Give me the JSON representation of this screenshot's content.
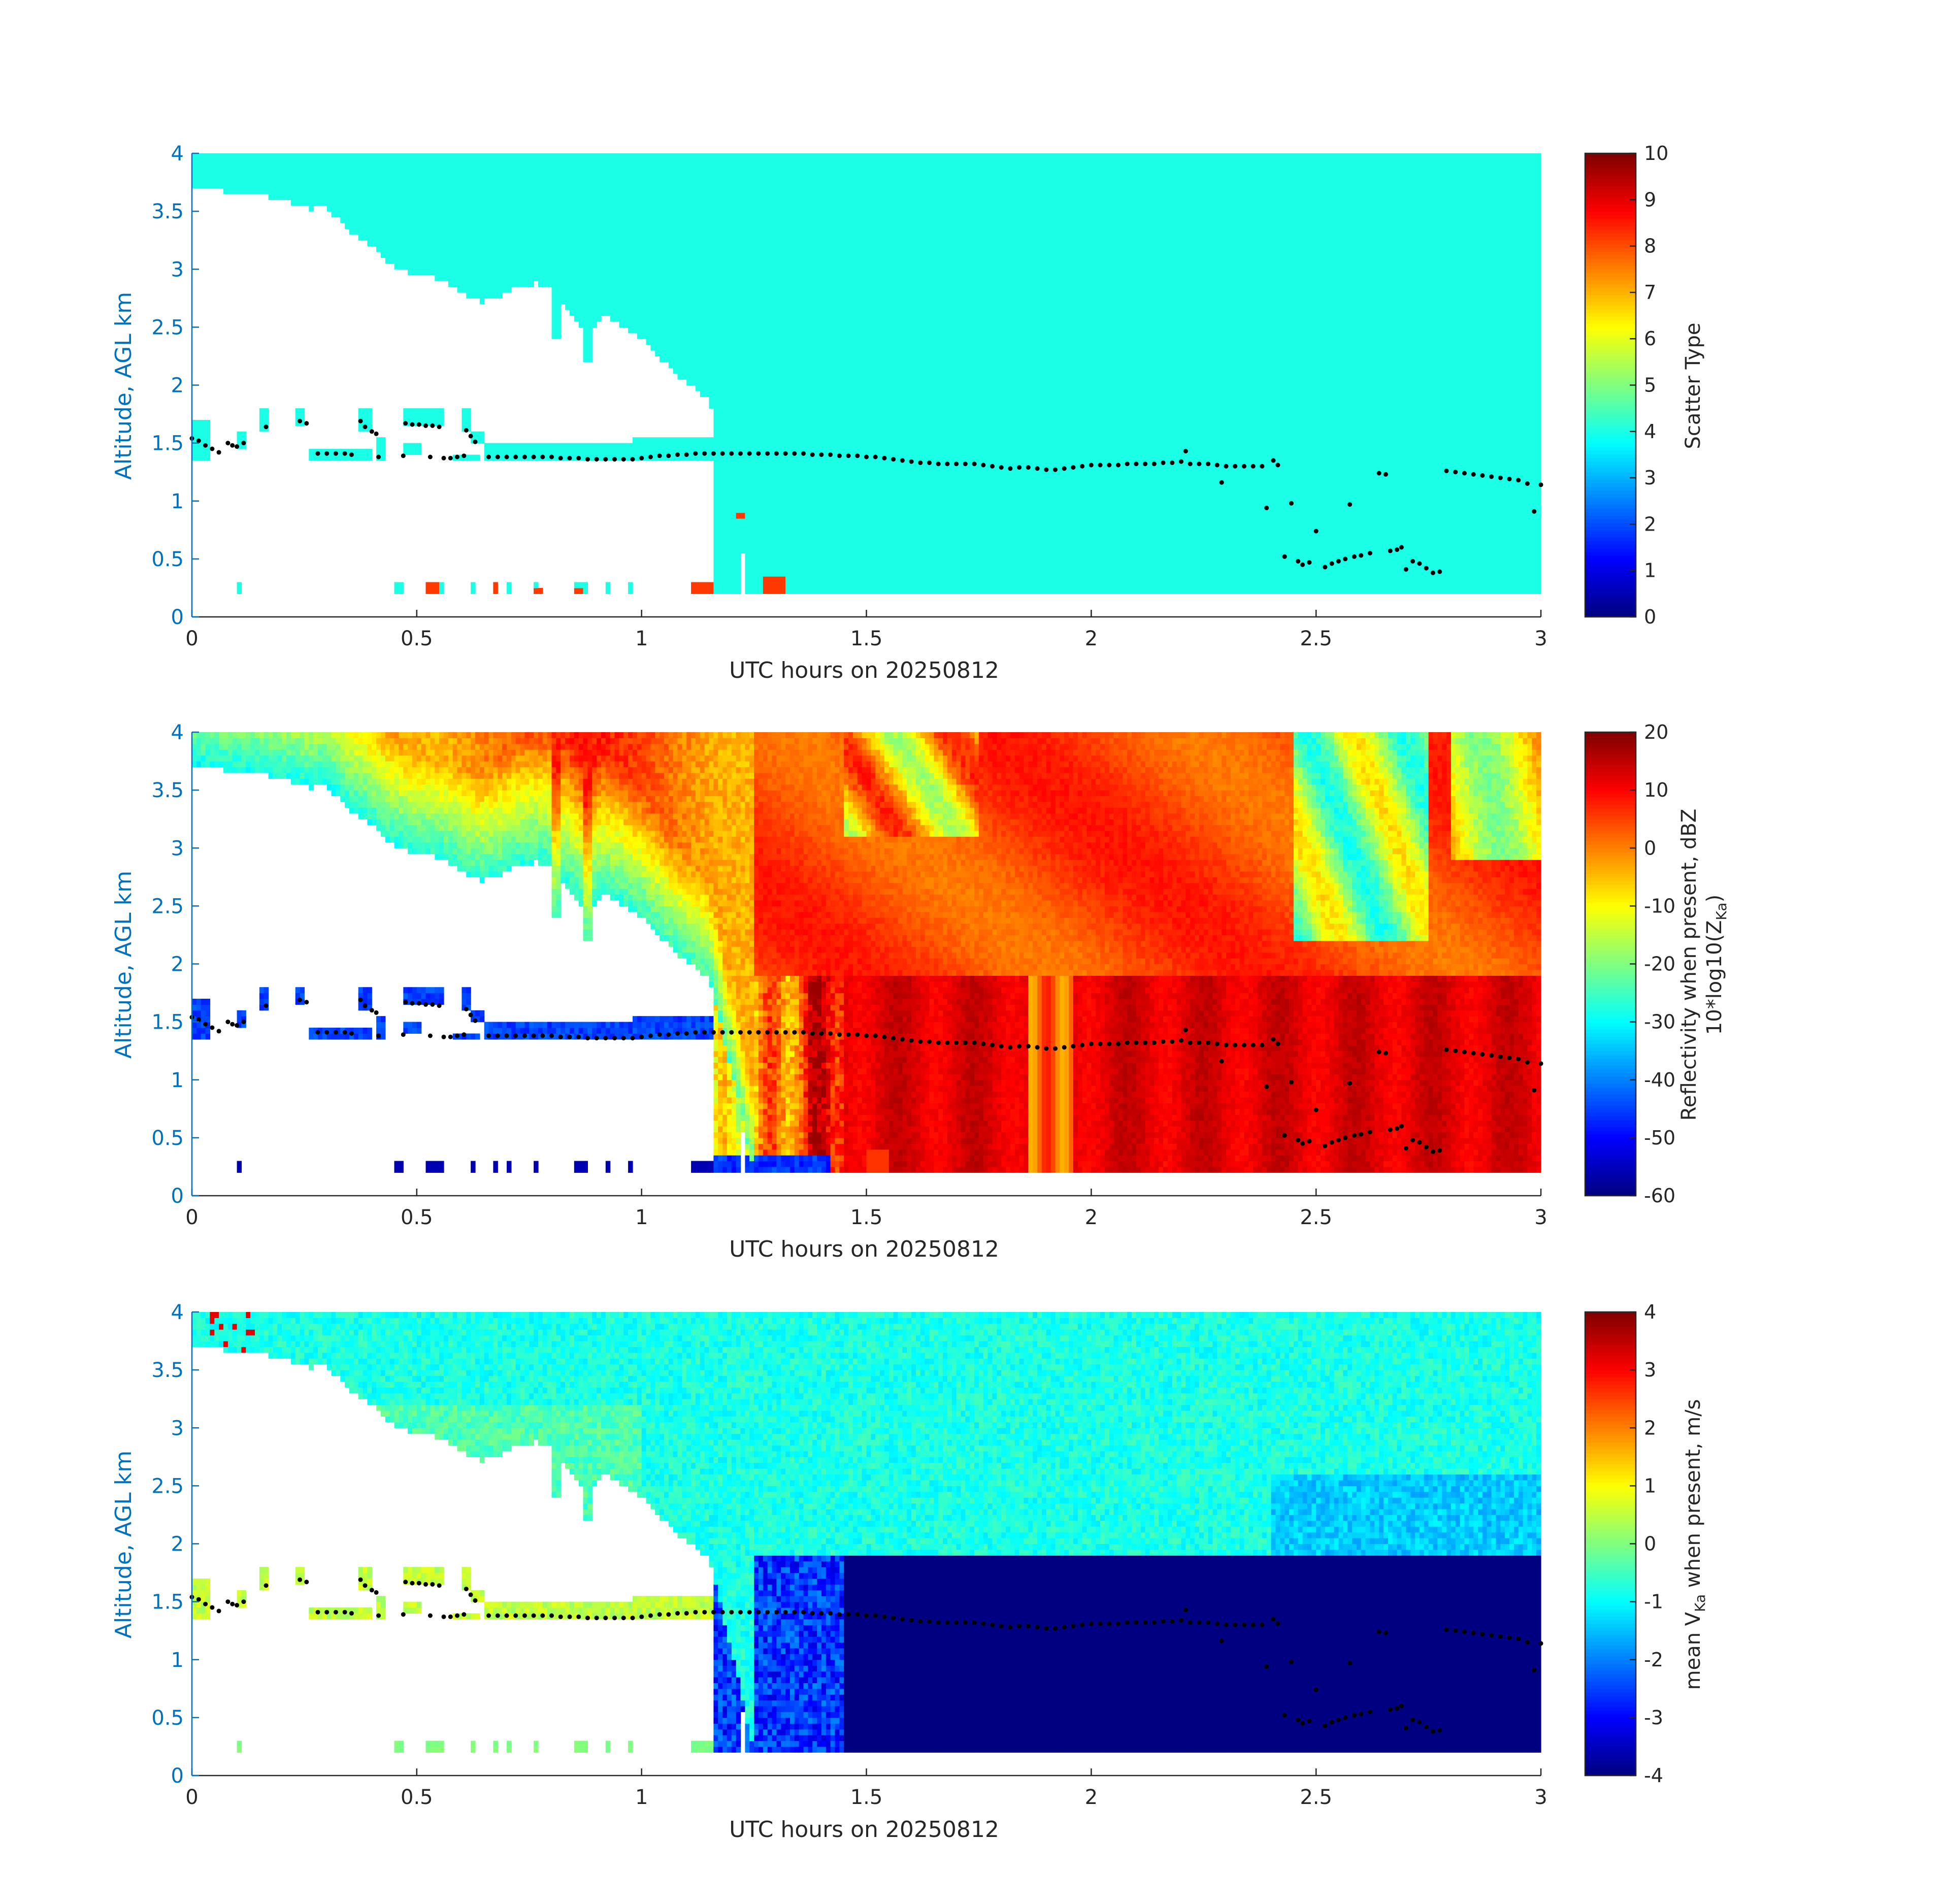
{
  "figure": {
    "background": "#ffffff",
    "axis_color": "#262626",
    "ylabel_color": "#0072BD",
    "missing_color": "#ffffff",
    "marker_color": "#000000"
  },
  "chart_data": [
    {
      "type": "heatmap",
      "id": "scatter-type",
      "xlabel": "UTC hours on 20250812",
      "ylabel": "Altitude, AGL km",
      "xlim": [
        0,
        3
      ],
      "ylim": [
        0,
        4
      ],
      "xticks": [
        0,
        0.5,
        1,
        1.5,
        2,
        2.5,
        3
      ],
      "xtick_labels": [
        "0",
        "0.5",
        "1",
        "1.5",
        "2",
        "2.5",
        "3"
      ],
      "yticks": [
        0,
        0.5,
        1,
        1.5,
        2,
        2.5,
        3,
        3.5,
        4
      ],
      "ytick_labels": [
        "0",
        "0.5",
        "1",
        "1.5",
        "2",
        "2.5",
        "3",
        "3.5",
        "4"
      ],
      "colorbar": {
        "label_lines": [
          "Scatter Type"
        ],
        "range": [
          0,
          10
        ],
        "ticks": [
          0,
          1,
          2,
          3,
          4,
          5,
          6,
          7,
          8,
          9,
          10
        ],
        "tick_labels": [
          "0",
          "1",
          "2",
          "3",
          "4",
          "5",
          "6",
          "7",
          "8",
          "9",
          "10"
        ],
        "colormap": "jet"
      },
      "field": "scatter_type",
      "field_values": {
        "cloud": 4,
        "low_returns": 8
      }
    },
    {
      "type": "heatmap",
      "id": "reflectivity",
      "xlabel": "UTC hours on 20250812",
      "ylabel": "Altitude, AGL km",
      "xlim": [
        0,
        3
      ],
      "ylim": [
        0,
        4
      ],
      "xticks": [
        0,
        0.5,
        1,
        1.5,
        2,
        2.5,
        3
      ],
      "xtick_labels": [
        "0",
        "0.5",
        "1",
        "1.5",
        "2",
        "2.5",
        "3"
      ],
      "yticks": [
        0,
        0.5,
        1,
        1.5,
        2,
        2.5,
        3,
        3.5,
        4
      ],
      "ytick_labels": [
        "0",
        "0.5",
        "1",
        "1.5",
        "2",
        "2.5",
        "3",
        "3.5",
        "4"
      ],
      "colorbar": {
        "label_lines": [
          "Reflectivity when present, dBZ",
          "10*log10(Z_Ka)"
        ],
        "label_line2_parts": [
          "10*log10(Z",
          "Ka",
          ")"
        ],
        "range": [
          -60,
          20
        ],
        "ticks": [
          -60,
          -50,
          -40,
          -30,
          -20,
          -10,
          0,
          10,
          20
        ],
        "tick_labels": [
          "-60",
          "-50",
          "-40",
          "-30",
          "-20",
          "-10",
          "0",
          "10",
          "20"
        ],
        "colormap": "jet"
      },
      "field": "reflectivity_dbz"
    },
    {
      "type": "heatmap",
      "id": "velocity",
      "xlabel": "UTC hours on 20250812",
      "ylabel": "Altitude, AGL km",
      "xlim": [
        0,
        3
      ],
      "ylim": [
        0,
        4
      ],
      "xticks": [
        0,
        0.5,
        1,
        1.5,
        2,
        2.5,
        3
      ],
      "xtick_labels": [
        "0",
        "0.5",
        "1",
        "1.5",
        "2",
        "2.5",
        "3"
      ],
      "yticks": [
        0,
        0.5,
        1,
        1.5,
        2,
        2.5,
        3,
        3.5,
        4
      ],
      "ytick_labels": [
        "0",
        "0.5",
        "1",
        "1.5",
        "2",
        "2.5",
        "3",
        "3.5",
        "4"
      ],
      "colorbar": {
        "label_lines": [
          "mean V_Ka when present, m/s"
        ],
        "label_parts": [
          "mean V",
          "Ka",
          " when present, m/s"
        ],
        "range": [
          -4,
          4
        ],
        "ticks": [
          -4,
          -3,
          -2,
          -1,
          0,
          1,
          2,
          3,
          4
        ],
        "tick_labels": [
          "-4",
          "-3",
          "-2",
          "-1",
          "0",
          "1",
          "2",
          "3",
          "4"
        ],
        "colormap": "jet"
      },
      "field": "velocity_ms"
    }
  ],
  "cloud_top_km": [
    [
      0.0,
      3.72
    ],
    [
      0.03,
      3.7
    ],
    [
      0.06,
      3.68
    ],
    [
      0.1,
      3.66
    ],
    [
      0.14,
      3.64
    ],
    [
      0.18,
      3.62
    ],
    [
      0.22,
      3.58
    ],
    [
      0.26,
      3.52
    ],
    [
      0.29,
      3.55
    ],
    [
      0.32,
      3.45
    ],
    [
      0.36,
      3.3
    ],
    [
      0.4,
      3.2
    ],
    [
      0.44,
      3.05
    ],
    [
      0.48,
      2.97
    ],
    [
      0.52,
      2.95
    ],
    [
      0.56,
      2.9
    ],
    [
      0.6,
      2.8
    ],
    [
      0.64,
      2.72
    ],
    [
      0.68,
      2.76
    ],
    [
      0.72,
      2.84
    ],
    [
      0.76,
      2.88
    ],
    [
      0.8,
      2.85
    ],
    [
      0.83,
      2.7
    ],
    [
      0.85,
      2.6
    ],
    [
      0.88,
      2.45
    ],
    [
      0.91,
      2.6
    ],
    [
      0.94,
      2.56
    ],
    [
      0.97,
      2.48
    ],
    [
      1.0,
      2.4
    ],
    [
      1.03,
      2.28
    ],
    [
      1.06,
      2.16
    ],
    [
      1.09,
      2.05
    ],
    [
      1.12,
      1.96
    ],
    [
      1.15,
      1.87
    ],
    [
      1.17,
      1.6
    ],
    [
      1.19,
      1.2
    ],
    [
      1.21,
      0.95
    ],
    [
      1.23,
      0.55
    ],
    [
      1.25,
      0.2
    ]
  ],
  "cloud_gaps": [
    [
      0.8,
      0.825,
      2.4
    ],
    [
      0.87,
      0.895,
      2.2
    ],
    [
      0.935,
      0.955,
      2.55
    ]
  ],
  "low_layer_segments": [
    [
      0.0,
      0.04,
      1.37,
      1.68
    ],
    [
      0.1,
      0.12,
      1.45,
      1.62
    ],
    [
      0.155,
      0.17,
      1.62,
      1.78
    ],
    [
      0.235,
      0.255,
      1.65,
      1.82
    ],
    [
      0.265,
      0.4,
      1.37,
      1.45
    ],
    [
      0.37,
      0.4,
      1.58,
      1.78
    ],
    [
      0.41,
      0.43,
      1.35,
      1.55
    ],
    [
      0.47,
      0.51,
      1.4,
      1.5
    ],
    [
      0.47,
      0.56,
      1.63,
      1.78
    ],
    [
      0.58,
      0.64,
      1.35,
      1.42
    ],
    [
      0.6,
      0.62,
      1.6,
      1.78
    ],
    [
      0.62,
      0.65,
      1.5,
      1.58
    ],
    [
      0.65,
      1.17,
      1.35,
      1.5
    ],
    [
      0.98,
      1.17,
      1.38,
      1.55
    ]
  ],
  "surface_returns": [
    [
      0.1,
      0.115
    ],
    [
      0.45,
      0.47
    ],
    [
      0.52,
      0.56
    ],
    [
      0.62,
      0.635
    ],
    [
      0.67,
      0.685
    ],
    [
      0.7,
      0.715
    ],
    [
      0.76,
      0.775
    ],
    [
      0.85,
      0.88
    ],
    [
      0.92,
      0.935
    ],
    [
      0.97,
      0.985
    ],
    [
      1.11,
      1.16
    ],
    [
      1.28,
      1.33
    ]
  ],
  "orange_returns": [
    [
      0.52,
      0.55,
      0.18,
      0.28
    ],
    [
      0.67,
      0.685,
      0.18,
      0.28
    ],
    [
      0.765,
      0.78,
      0.18,
      0.23
    ],
    [
      0.855,
      0.87,
      0.18,
      0.23
    ],
    [
      1.11,
      1.16,
      0.18,
      0.28
    ],
    [
      1.215,
      1.23,
      0.85,
      0.9
    ],
    [
      1.27,
      1.32,
      0.18,
      0.35
    ]
  ],
  "cloud_base_markers": [
    [
      0.0,
      1.54
    ],
    [
      0.015,
      1.52
    ],
    [
      0.03,
      1.48
    ],
    [
      0.045,
      1.45
    ],
    [
      0.06,
      1.42
    ],
    [
      0.08,
      1.5
    ],
    [
      0.09,
      1.48
    ],
    [
      0.1,
      1.47
    ],
    [
      0.115,
      1.5
    ],
    [
      0.165,
      1.64
    ],
    [
      0.24,
      1.69
    ],
    [
      0.255,
      1.67
    ],
    [
      0.28,
      1.41
    ],
    [
      0.3,
      1.41
    ],
    [
      0.32,
      1.41
    ],
    [
      0.34,
      1.41
    ],
    [
      0.355,
      1.4
    ],
    [
      0.375,
      1.69
    ],
    [
      0.385,
      1.64
    ],
    [
      0.4,
      1.6
    ],
    [
      0.41,
      1.58
    ],
    [
      0.415,
      1.38
    ],
    [
      0.47,
      1.39
    ],
    [
      0.475,
      1.67
    ],
    [
      0.49,
      1.66
    ],
    [
      0.505,
      1.66
    ],
    [
      0.52,
      1.65
    ],
    [
      0.535,
      1.65
    ],
    [
      0.55,
      1.64
    ],
    [
      0.53,
      1.38
    ],
    [
      0.56,
      1.37
    ],
    [
      0.575,
      1.37
    ],
    [
      0.59,
      1.38
    ],
    [
      0.605,
      1.39
    ],
    [
      0.61,
      1.61
    ],
    [
      0.62,
      1.56
    ],
    [
      0.63,
      1.51
    ],
    [
      0.66,
      1.38
    ],
    [
      0.68,
      1.38
    ],
    [
      0.7,
      1.38
    ],
    [
      0.72,
      1.38
    ],
    [
      0.74,
      1.38
    ],
    [
      0.76,
      1.38
    ],
    [
      0.78,
      1.38
    ],
    [
      0.8,
      1.38
    ],
    [
      0.82,
      1.37
    ],
    [
      0.84,
      1.37
    ],
    [
      0.86,
      1.37
    ],
    [
      0.88,
      1.36
    ],
    [
      0.9,
      1.36
    ],
    [
      0.92,
      1.36
    ],
    [
      0.94,
      1.36
    ],
    [
      0.96,
      1.36
    ],
    [
      0.98,
      1.36
    ],
    [
      1.0,
      1.37
    ],
    [
      1.02,
      1.38
    ],
    [
      1.04,
      1.39
    ],
    [
      1.06,
      1.39
    ],
    [
      1.08,
      1.4
    ],
    [
      1.1,
      1.4
    ],
    [
      1.12,
      1.41
    ],
    [
      1.14,
      1.41
    ],
    [
      1.16,
      1.41
    ],
    [
      1.18,
      1.41
    ],
    [
      1.2,
      1.41
    ],
    [
      1.22,
      1.41
    ],
    [
      1.24,
      1.41
    ],
    [
      1.26,
      1.41
    ],
    [
      1.28,
      1.41
    ],
    [
      1.3,
      1.41
    ],
    [
      1.32,
      1.41
    ],
    [
      1.34,
      1.41
    ],
    [
      1.36,
      1.41
    ],
    [
      1.38,
      1.4
    ],
    [
      1.4,
      1.4
    ],
    [
      1.42,
      1.4
    ],
    [
      1.44,
      1.39
    ],
    [
      1.46,
      1.39
    ],
    [
      1.48,
      1.39
    ],
    [
      1.5,
      1.38
    ],
    [
      1.52,
      1.38
    ],
    [
      1.54,
      1.37
    ],
    [
      1.56,
      1.36
    ],
    [
      1.58,
      1.35
    ],
    [
      1.6,
      1.34
    ],
    [
      1.62,
      1.33
    ],
    [
      1.64,
      1.33
    ],
    [
      1.66,
      1.32
    ],
    [
      1.68,
      1.32
    ],
    [
      1.7,
      1.32
    ],
    [
      1.72,
      1.32
    ],
    [
      1.74,
      1.32
    ],
    [
      1.76,
      1.31
    ],
    [
      1.78,
      1.3
    ],
    [
      1.8,
      1.29
    ],
    [
      1.82,
      1.28
    ],
    [
      1.84,
      1.29
    ],
    [
      1.86,
      1.29
    ],
    [
      1.88,
      1.28
    ],
    [
      1.9,
      1.27
    ],
    [
      1.92,
      1.27
    ],
    [
      1.94,
      1.28
    ],
    [
      1.96,
      1.29
    ],
    [
      1.98,
      1.3
    ],
    [
      2.0,
      1.31
    ],
    [
      2.02,
      1.31
    ],
    [
      2.04,
      1.31
    ],
    [
      2.06,
      1.31
    ],
    [
      2.08,
      1.32
    ],
    [
      2.1,
      1.32
    ],
    [
      2.12,
      1.32
    ],
    [
      2.14,
      1.32
    ],
    [
      2.16,
      1.33
    ],
    [
      2.18,
      1.33
    ],
    [
      2.2,
      1.34
    ],
    [
      2.21,
      1.43
    ],
    [
      2.22,
      1.32
    ],
    [
      2.24,
      1.32
    ],
    [
      2.26,
      1.32
    ],
    [
      2.28,
      1.31
    ],
    [
      2.29,
      1.16
    ],
    [
      2.3,
      1.3
    ],
    [
      2.32,
      1.3
    ],
    [
      2.34,
      1.3
    ],
    [
      2.36,
      1.3
    ],
    [
      2.38,
      1.3
    ],
    [
      2.39,
      0.94
    ],
    [
      2.405,
      1.35
    ],
    [
      2.415,
      1.31
    ],
    [
      2.43,
      0.52
    ],
    [
      2.445,
      0.98
    ],
    [
      2.46,
      0.48
    ],
    [
      2.47,
      0.45
    ],
    [
      2.485,
      0.47
    ],
    [
      2.5,
      0.74
    ],
    [
      2.52,
      0.43
    ],
    [
      2.535,
      0.46
    ],
    [
      2.55,
      0.48
    ],
    [
      2.565,
      0.5
    ],
    [
      2.575,
      0.97
    ],
    [
      2.585,
      0.52
    ],
    [
      2.6,
      0.53
    ],
    [
      2.62,
      0.55
    ],
    [
      2.64,
      1.24
    ],
    [
      2.655,
      1.23
    ],
    [
      2.665,
      0.57
    ],
    [
      2.68,
      0.58
    ],
    [
      2.69,
      0.6
    ],
    [
      2.7,
      0.41
    ],
    [
      2.715,
      0.48
    ],
    [
      2.73,
      0.46
    ],
    [
      2.745,
      0.42
    ],
    [
      2.76,
      0.38
    ],
    [
      2.775,
      0.39
    ],
    [
      2.79,
      1.26
    ],
    [
      2.81,
      1.25
    ],
    [
      2.83,
      1.24
    ],
    [
      2.85,
      1.23
    ],
    [
      2.87,
      1.22
    ],
    [
      2.89,
      1.21
    ],
    [
      2.91,
      1.2
    ],
    [
      2.93,
      1.19
    ],
    [
      2.95,
      1.18
    ],
    [
      2.97,
      1.15
    ],
    [
      2.985,
      0.91
    ],
    [
      3.0,
      1.14
    ]
  ]
}
